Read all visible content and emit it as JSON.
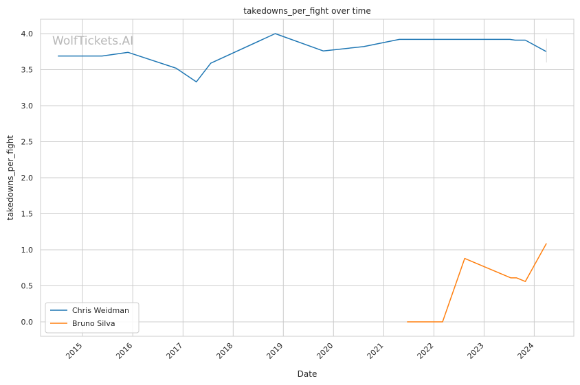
{
  "chart_data": {
    "type": "line",
    "title": "takedowns_per_fight over time",
    "xlabel": "Date",
    "ylabel": "takedowns_per_fight",
    "watermark": "WolfTickets.AI",
    "xlim": [
      "2014-03-01",
      "2024-10-15"
    ],
    "ylim": [
      -0.2,
      4.2
    ],
    "x_ticks": [
      "2015",
      "2016",
      "2017",
      "2018",
      "2019",
      "2020",
      "2021",
      "2022",
      "2023",
      "2024"
    ],
    "y_ticks": [
      "0.0",
      "0.5",
      "1.0",
      "1.5",
      "2.0",
      "2.5",
      "3.0",
      "3.5",
      "4.0"
    ],
    "grid": true,
    "legend_position": "lower-left",
    "series": [
      {
        "name": "Chris Weidman",
        "color": "#1f77b4",
        "points": [
          [
            "2014-07-05",
            3.69
          ],
          [
            "2015-05-23",
            3.69
          ],
          [
            "2015-11-28",
            3.74
          ],
          [
            "2016-11-12",
            3.52
          ],
          [
            "2017-04-08",
            3.33
          ],
          [
            "2017-07-22",
            3.59
          ],
          [
            "2018-11-03",
            4.0
          ],
          [
            "2019-10-18",
            3.76
          ],
          [
            "2020-08-08",
            3.82
          ],
          [
            "2021-04-24",
            3.92
          ],
          [
            "2023-07-08",
            3.92
          ],
          [
            "2023-08-15",
            3.91
          ],
          [
            "2023-10-28",
            3.91
          ],
          [
            "2024-03-30",
            3.75
          ]
        ]
      },
      {
        "name": "Bruno Silva",
        "color": "#ff7f0e",
        "points": [
          [
            "2021-06-19",
            0.0
          ],
          [
            "2022-03-05",
            0.0
          ],
          [
            "2022-08-13",
            0.88
          ],
          [
            "2023-07-15",
            0.61
          ],
          [
            "2023-08-26",
            0.61
          ],
          [
            "2023-10-28",
            0.56
          ],
          [
            "2024-03-30",
            1.09
          ]
        ]
      }
    ]
  }
}
